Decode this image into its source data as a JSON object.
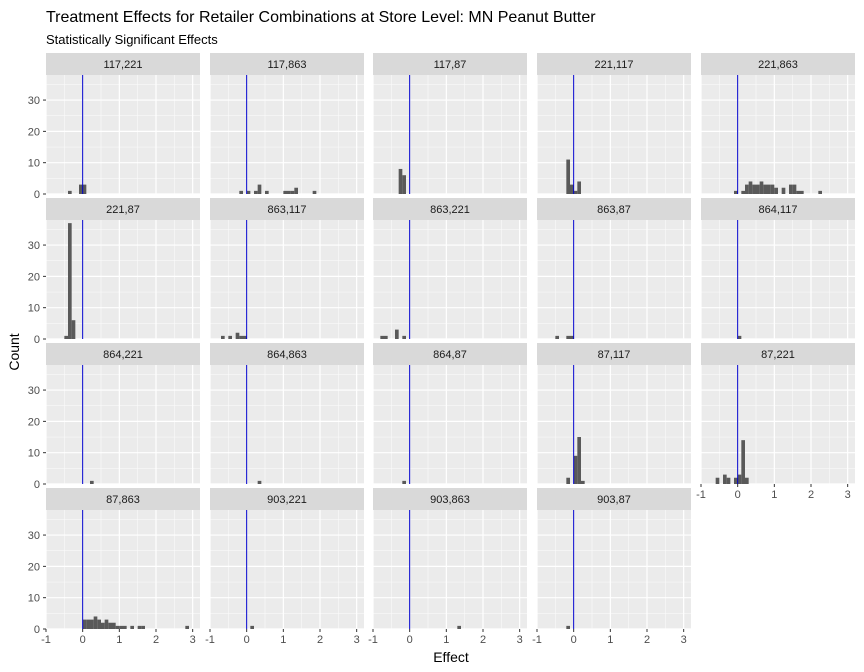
{
  "chart_data": {
    "type": "bar",
    "title": "Treatment Effects for Retailer Combinations at Store Level: MN Peanut Butter",
    "subtitle": "Statistically Significant Effects",
    "xlabel": "Effect",
    "ylabel": "Count",
    "xlim": [
      -1,
      3.2
    ],
    "ylim": [
      0,
      38
    ],
    "x_ticks": [
      -1,
      0,
      1,
      2,
      3
    ],
    "y_ticks": [
      0,
      10,
      20,
      30
    ],
    "bin_width": 0.1,
    "grid": true,
    "reference_line": {
      "x": 0,
      "color": "#0000cc"
    },
    "bar_color": "#595959",
    "panel_background": "#ebebeb",
    "strip_background": "#d9d9d9",
    "panels": [
      {
        "label": "117,221",
        "bins": [
          [
            -0.35,
            1
          ],
          [
            -0.05,
            3
          ],
          [
            0.05,
            3
          ]
        ]
      },
      {
        "label": "117,863",
        "bins": [
          [
            -0.15,
            1
          ],
          [
            0.05,
            1
          ],
          [
            0.25,
            1
          ],
          [
            0.35,
            3
          ],
          [
            0.55,
            1
          ],
          [
            1.05,
            1
          ],
          [
            1.15,
            1
          ],
          [
            1.25,
            1
          ],
          [
            1.35,
            2
          ],
          [
            1.85,
            1
          ]
        ]
      },
      {
        "label": "117,87",
        "bins": [
          [
            -0.25,
            8
          ],
          [
            -0.15,
            6
          ]
        ]
      },
      {
        "label": "221,117",
        "bins": [
          [
            -0.15,
            11
          ],
          [
            -0.05,
            3
          ],
          [
            0.05,
            1
          ],
          [
            0.15,
            4
          ]
        ]
      },
      {
        "label": "221,863",
        "bins": [
          [
            -0.05,
            1
          ],
          [
            0.15,
            1
          ],
          [
            0.25,
            3
          ],
          [
            0.35,
            4
          ],
          [
            0.45,
            3
          ],
          [
            0.55,
            3
          ],
          [
            0.65,
            4
          ],
          [
            0.75,
            3
          ],
          [
            0.85,
            3
          ],
          [
            0.95,
            3
          ],
          [
            1.05,
            2
          ],
          [
            1.25,
            2
          ],
          [
            1.45,
            3
          ],
          [
            1.55,
            3
          ],
          [
            1.65,
            1
          ],
          [
            1.75,
            1
          ],
          [
            2.25,
            1
          ]
        ]
      },
      {
        "label": "221,87",
        "bins": [
          [
            -0.45,
            1
          ],
          [
            -0.35,
            37
          ],
          [
            -0.25,
            6
          ]
        ]
      },
      {
        "label": "863,117",
        "bins": [
          [
            -0.65,
            1
          ],
          [
            -0.45,
            1
          ],
          [
            -0.25,
            2
          ],
          [
            -0.15,
            1
          ],
          [
            -0.05,
            1
          ]
        ]
      },
      {
        "label": "863,221",
        "bins": [
          [
            -0.75,
            1
          ],
          [
            -0.65,
            1
          ],
          [
            -0.35,
            3
          ],
          [
            -0.15,
            1
          ]
        ]
      },
      {
        "label": "863,87",
        "bins": [
          [
            -0.45,
            1
          ],
          [
            -0.15,
            1
          ],
          [
            -0.05,
            1
          ]
        ]
      },
      {
        "label": "864,117",
        "bins": [
          [
            0.05,
            1
          ]
        ]
      },
      {
        "label": "864,221",
        "bins": [
          [
            0.25,
            1
          ]
        ]
      },
      {
        "label": "864,863",
        "bins": [
          [
            0.35,
            1
          ]
        ]
      },
      {
        "label": "864,87",
        "bins": [
          [
            -0.15,
            1
          ]
        ]
      },
      {
        "label": "87,117",
        "bins": [
          [
            -0.15,
            2
          ],
          [
            0.05,
            9
          ],
          [
            0.15,
            15
          ],
          [
            0.25,
            1
          ]
        ]
      },
      {
        "label": "87,221",
        "bins": [
          [
            -0.55,
            2
          ],
          [
            -0.35,
            3
          ],
          [
            -0.25,
            2
          ],
          [
            -0.05,
            2
          ],
          [
            0.05,
            3
          ],
          [
            0.15,
            14
          ],
          [
            0.25,
            2
          ]
        ]
      },
      {
        "label": "87,863",
        "bins": [
          [
            0.05,
            3
          ],
          [
            0.15,
            3
          ],
          [
            0.25,
            3
          ],
          [
            0.35,
            4
          ],
          [
            0.45,
            3
          ],
          [
            0.55,
            2
          ],
          [
            0.65,
            3
          ],
          [
            0.75,
            2
          ],
          [
            0.85,
            2
          ],
          [
            0.95,
            1
          ],
          [
            1.05,
            1
          ],
          [
            1.15,
            1
          ],
          [
            1.35,
            1
          ],
          [
            1.55,
            1
          ],
          [
            1.65,
            1
          ],
          [
            2.85,
            1
          ]
        ]
      },
      {
        "label": "903,221",
        "bins": [
          [
            0.15,
            1
          ]
        ]
      },
      {
        "label": "903,863",
        "bins": [
          [
            1.35,
            1
          ]
        ]
      },
      {
        "label": "903,87",
        "bins": [
          [
            -0.15,
            1
          ]
        ]
      }
    ]
  }
}
